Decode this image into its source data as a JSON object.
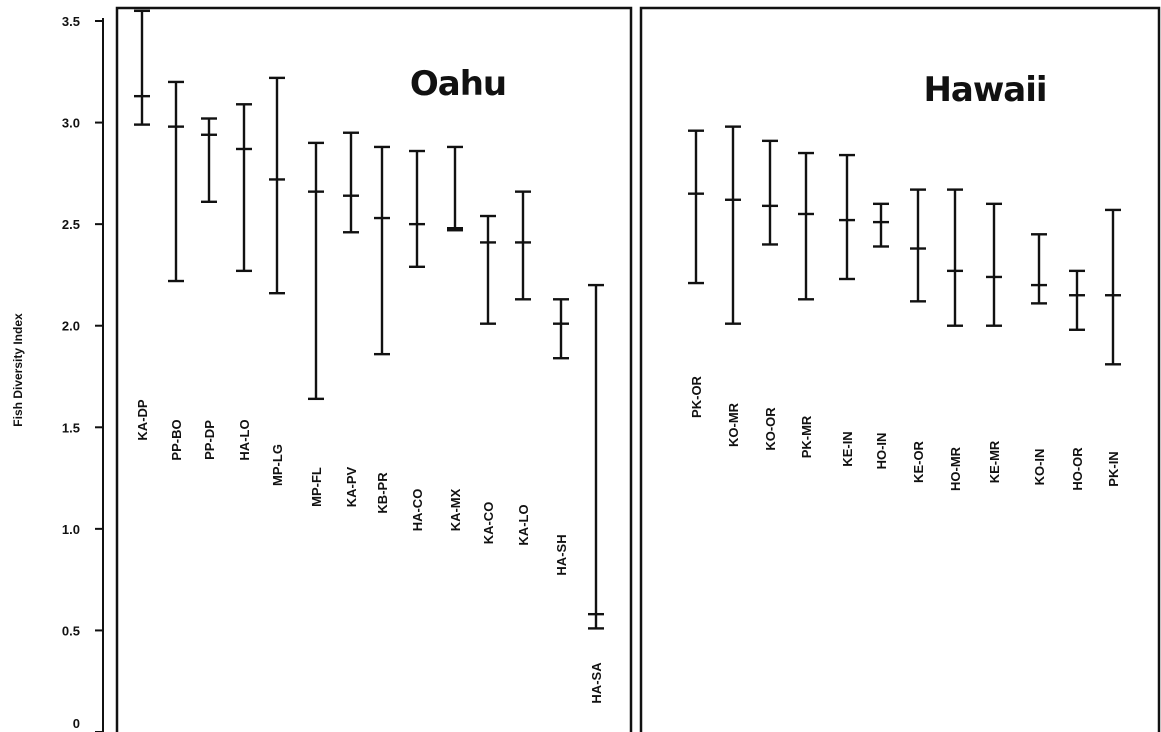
{
  "chart_data": {
    "type": "errorbar",
    "ylabel": "Fish Diversity Index",
    "ylim": [
      0,
      3.5
    ],
    "yticks": [
      "0",
      "0.5",
      "1.0",
      "1.5",
      "2.0",
      "2.5",
      "3.0",
      "3.5"
    ],
    "panels": [
      {
        "title": "Oahu",
        "sites": [
          {
            "label": "KA-DP",
            "mean": 3.13,
            "low": 2.99,
            "high": 3.55
          },
          {
            "label": "PP-BO",
            "mean": 2.98,
            "low": 2.22,
            "high": 3.2
          },
          {
            "label": "PP-DP",
            "mean": 2.94,
            "low": 2.61,
            "high": 3.02
          },
          {
            "label": "HA-LO",
            "mean": 2.87,
            "low": 2.27,
            "high": 3.09
          },
          {
            "label": "MP-LG",
            "mean": 2.72,
            "low": 2.16,
            "high": 3.22
          },
          {
            "label": "MP-FL",
            "mean": 2.66,
            "low": 1.64,
            "high": 2.9
          },
          {
            "label": "KA-PV",
            "mean": 2.64,
            "low": 2.46,
            "high": 2.95
          },
          {
            "label": "KB-PR",
            "mean": 2.53,
            "low": 1.86,
            "high": 2.88
          },
          {
            "label": "HA-CO",
            "mean": 2.5,
            "low": 2.29,
            "high": 2.86
          },
          {
            "label": "KA-MX",
            "mean": 2.48,
            "low": 2.47,
            "high": 2.88
          },
          {
            "label": "KA-CO",
            "mean": 2.41,
            "low": 2.01,
            "high": 2.54
          },
          {
            "label": "KA-LO",
            "mean": 2.41,
            "low": 2.13,
            "high": 2.66
          },
          {
            "label": "HA-SH",
            "mean": 2.01,
            "low": 1.84,
            "high": 2.13
          },
          {
            "label": "HA-SA",
            "mean": 0.58,
            "low": 0.51,
            "high": 2.2
          }
        ]
      },
      {
        "title": "Hawaii",
        "sites": [
          {
            "label": "PK-OR",
            "mean": 2.65,
            "low": 2.21,
            "high": 2.96
          },
          {
            "label": "KO-MR",
            "mean": 2.62,
            "low": 2.01,
            "high": 2.98
          },
          {
            "label": "KO-OR",
            "mean": 2.59,
            "low": 2.4,
            "high": 2.91
          },
          {
            "label": "PK-MR",
            "mean": 2.55,
            "low": 2.13,
            "high": 2.85
          },
          {
            "label": "KE-IN",
            "mean": 2.52,
            "low": 2.23,
            "high": 2.84
          },
          {
            "label": "HO-IN",
            "mean": 2.51,
            "low": 2.39,
            "high": 2.6
          },
          {
            "label": "KE-OR",
            "mean": 2.38,
            "low": 2.12,
            "high": 2.67
          },
          {
            "label": "HO-MR",
            "mean": 2.27,
            "low": 2.0,
            "high": 2.67
          },
          {
            "label": "KE-MR",
            "mean": 2.24,
            "low": 2.0,
            "high": 2.6
          },
          {
            "label": "KO-IN",
            "mean": 2.2,
            "low": 2.11,
            "high": 2.45
          },
          {
            "label": "HO-OR",
            "mean": 2.15,
            "low": 1.98,
            "high": 2.27
          },
          {
            "label": "PK-IN",
            "mean": 2.15,
            "low": 1.81,
            "high": 2.57
          }
        ]
      }
    ]
  }
}
